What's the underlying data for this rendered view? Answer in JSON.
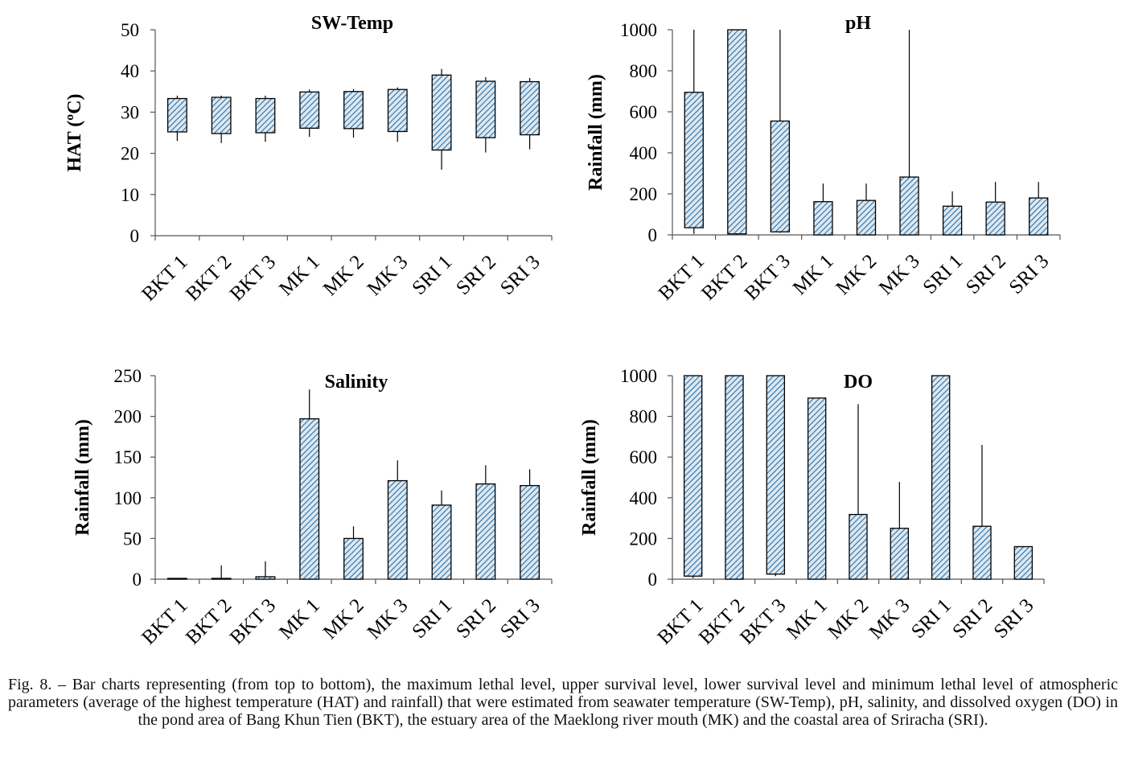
{
  "figure": {
    "caption": "Fig. 8. – Bar charts representing (from top to bottom), the maximum lethal level, upper survival level, lower survival level and minimum lethal level of atmospheric parameters (average of the highest temperature (HAT) and rainfall) that were estimated from seawater temperature (SW-Temp), pH, salinity, and dissolved oxygen (DO) in the pond area of Bang Khun Tien (BKT), the estuary area of the Maeklong river mouth (MK) and the coastal area of Sriracha (SRI)."
  },
  "colors": {
    "bar_hatch": "#2f6f9f",
    "bar_background": "#dbe8f3",
    "axis": "#555555",
    "text": "#000000"
  },
  "chart_data": [
    {
      "type": "bar",
      "title": "SW-Temp",
      "ylabel": "HAT (ºC)",
      "xlabel": "",
      "ylim": [
        0,
        50
      ],
      "yticks": [
        0,
        10,
        20,
        30,
        40,
        50
      ],
      "grid": false,
      "categories": [
        "BKT 1",
        "BKT 2",
        "BKT 3",
        "MK 1",
        "MK 2",
        "MK 3",
        "SRI 1",
        "SRI 2",
        "SRI 3"
      ],
      "bar_low": [
        25.2,
        24.8,
        25.0,
        26.1,
        26.0,
        25.3,
        20.8,
        23.8,
        24.5
      ],
      "bar_high": [
        33.3,
        33.6,
        33.3,
        34.9,
        35.0,
        35.5,
        39.0,
        37.5,
        37.4
      ],
      "whisker_low": [
        23.0,
        22.5,
        22.8,
        24.0,
        23.8,
        22.8,
        16.0,
        20.2,
        21.0
      ],
      "whisker_high": [
        34.0,
        34.0,
        34.0,
        35.5,
        35.6,
        36.0,
        40.5,
        38.5,
        38.3
      ]
    },
    {
      "type": "bar",
      "title": "pH",
      "ylabel": "Rainfall (mm)",
      "xlabel": "",
      "ylim": [
        0,
        1000
      ],
      "yticks": [
        0,
        200,
        400,
        600,
        800,
        1000
      ],
      "grid": false,
      "categories": [
        "BKT 1",
        "BKT 2",
        "BKT 3",
        "MK 1",
        "MK 2",
        "MK 3",
        "SRI 1",
        "SRI 2",
        "SRI 3"
      ],
      "bar_low": [
        35,
        5,
        15,
        0,
        0,
        0,
        0,
        0,
        0
      ],
      "bar_high": [
        695,
        1000,
        555,
        162,
        168,
        282,
        140,
        160,
        180
      ],
      "whisker_low": [
        5,
        0,
        10,
        0,
        0,
        0,
        0,
        0,
        0
      ],
      "whisker_high": [
        1000,
        1000,
        1000,
        250,
        250,
        1000,
        212,
        258,
        258
      ]
    },
    {
      "type": "bar",
      "title": "Salinity",
      "ylabel": "Rainfall (mm)",
      "xlabel": "",
      "ylim": [
        0,
        250
      ],
      "yticks": [
        0,
        50,
        100,
        150,
        200,
        250
      ],
      "grid": false,
      "categories": [
        "BKT 1",
        "BKT 2",
        "BKT 3",
        "MK 1",
        "MK 2",
        "MK 3",
        "SRI 1",
        "SRI 2",
        "SRI 3"
      ],
      "bar_low": [
        0,
        0,
        0,
        0,
        0,
        0,
        0,
        0,
        0
      ],
      "bar_high": [
        1,
        1,
        3,
        197,
        50,
        121,
        91,
        117,
        115
      ],
      "whisker_low": [
        0,
        0,
        0,
        0,
        0,
        0,
        0,
        0,
        0
      ],
      "whisker_high": [
        1,
        17,
        22,
        233,
        65,
        146,
        109,
        140,
        135
      ]
    },
    {
      "type": "bar",
      "title": "DO",
      "ylabel": "Rainfall (mm)",
      "xlabel": "",
      "ylim": [
        0,
        1000
      ],
      "yticks": [
        0,
        200,
        400,
        600,
        800,
        1000
      ],
      "grid": false,
      "categories": [
        "BKT 1",
        "BKT 2",
        "BKT 3",
        "MK 1",
        "MK 2",
        "MK 3",
        "SRI 1",
        "SRI 2",
        "SRI 3"
      ],
      "bar_low": [
        15,
        0,
        25,
        0,
        0,
        0,
        0,
        0,
        0
      ],
      "bar_high": [
        1000,
        1000,
        1000,
        890,
        318,
        250,
        1000,
        260,
        160
      ],
      "whisker_low": [
        5,
        0,
        15,
        0,
        0,
        0,
        0,
        0,
        0
      ],
      "whisker_high": [
        1000,
        1000,
        1000,
        890,
        860,
        478,
        1000,
        660,
        160
      ]
    }
  ]
}
